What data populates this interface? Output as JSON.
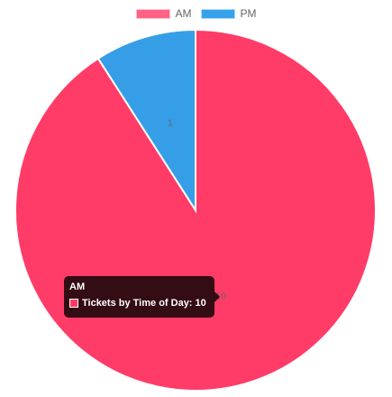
{
  "chart_data": {
    "type": "pie",
    "categories": [
      "AM",
      "PM"
    ],
    "series": [
      {
        "name": "Tickets by Time of Day",
        "values": [
          10,
          1
        ]
      }
    ],
    "colors": [
      "#ff3c67",
      "#369ee6"
    ],
    "legend_position": "top",
    "data_labels": [
      "10",
      "1"
    ],
    "tooltip": {
      "title": "AM",
      "label": "Tickets by Time of Day: 10",
      "swatch_color": "#ff3c67"
    }
  }
}
